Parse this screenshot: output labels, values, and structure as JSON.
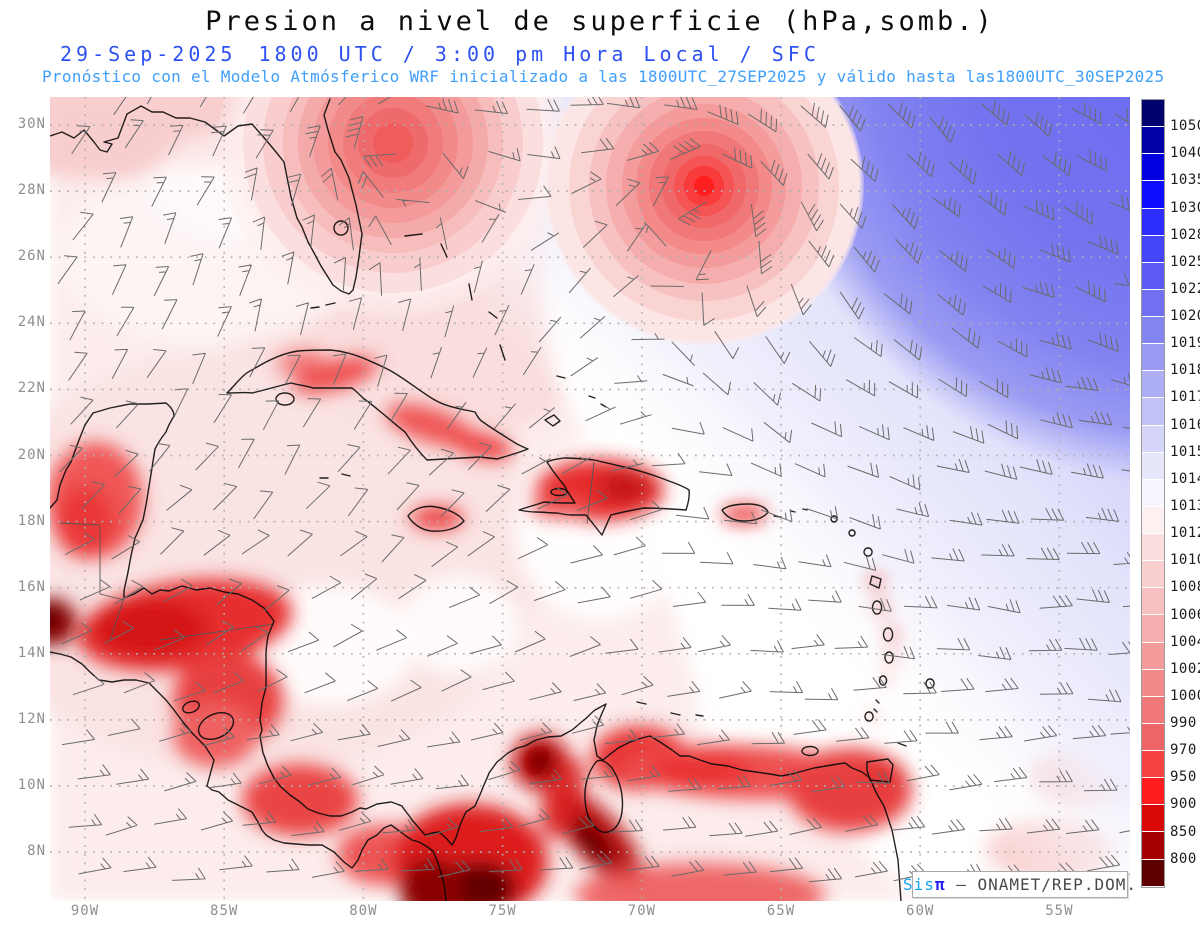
{
  "header": {
    "title": "Presion a nivel de superficie (hPa,somb.)",
    "date": "29-Sep-2025",
    "time_label": "1800 UTC / 3:00 pm Hora Local / SFC",
    "forecast_prefix": "Pronóstico con el Modelo Atmósferico WRF inicializado a las 1800UTC_27SEP2025 y válido hasta las",
    "forecast_valid": "1800UTC_30SEP2025",
    "colors": {
      "title": "#0d0d0d",
      "datetime": "#2e52f2",
      "note": "#3f9ffb"
    }
  },
  "axes": {
    "lat_labels": [
      "30N",
      "28N",
      "26N",
      "24N",
      "22N",
      "20N",
      "18N",
      "16N",
      "14N",
      "12N",
      "10N",
      "8N"
    ],
    "lon_labels": [
      "90W",
      "85W",
      "80W",
      "75W",
      "70W",
      "65W",
      "60W",
      "55W"
    ]
  },
  "colorbar": {
    "unit": "hPa",
    "labels": [
      "1050",
      "1040",
      "1035",
      "1030",
      "1028",
      "1025",
      "1022",
      "1020",
      "1019",
      "1018",
      "1017",
      "1016",
      "1015",
      "1014",
      "1013",
      "1012",
      "1010",
      "1008",
      "1006",
      "1004",
      "1002",
      "1000",
      "990",
      "970",
      "950",
      "900",
      "850",
      "800"
    ],
    "colors": [
      "#02026e",
      "#0000a8",
      "#0000e0",
      "#0d0dff",
      "#2d2dfd",
      "#4545f8",
      "#5b5bf4",
      "#7070f1",
      "#8585f1",
      "#9a9af3",
      "#aeaef5",
      "#c2c2f7",
      "#d6d6fa",
      "#e7e7fc",
      "#f5f5fe",
      "#fdf0f0",
      "#fbdfdf",
      "#f9cfcf",
      "#f7bfbf",
      "#f6aeae",
      "#f49c9c",
      "#f28a8a",
      "#f07878",
      "#ee6565",
      "#f74242",
      "#ff1c1c",
      "#d90808",
      "#a60000",
      "#5f0000"
    ]
  },
  "watermark": {
    "sys": "Sis",
    "pi": "π",
    "sep": " – ",
    "org": "ONAMET/REP.DOM."
  },
  "chart_data": {
    "type": "heatmap",
    "field": "surface_pressure",
    "unit": "hPa",
    "region": {
      "lon_range": [
        "90W",
        "55W"
      ],
      "lat_range": [
        "8N",
        "30N"
      ]
    },
    "shading_levels_hPa": [
      800,
      850,
      900,
      950,
      970,
      990,
      1000,
      1002,
      1004,
      1006,
      1008,
      1010,
      1012,
      1013,
      1014,
      1015,
      1016,
      1017,
      1018,
      1019,
      1020,
      1022,
      1025,
      1028,
      1030,
      1035,
      1040,
      1050
    ],
    "features": [
      {
        "name": "low-pressure-center",
        "lon": "79W",
        "lat": "29.5N",
        "approx_hPa": 1004
      },
      {
        "name": "low-pressure-center",
        "lon": "68W",
        "lat": "28.2N",
        "approx_hPa": 996
      },
      {
        "name": "high-pressure-area",
        "location": "northeast corner (Atlantic)",
        "approx_hPa": 1022
      },
      {
        "name": "thermal-low-land",
        "location": "Central America / Colombia / Venezuela",
        "approx_hPa": 990
      }
    ],
    "overlays": [
      "wind-barbs",
      "coastlines",
      "dotted-lat-lon-grid"
    ],
    "legend_position": "right"
  }
}
